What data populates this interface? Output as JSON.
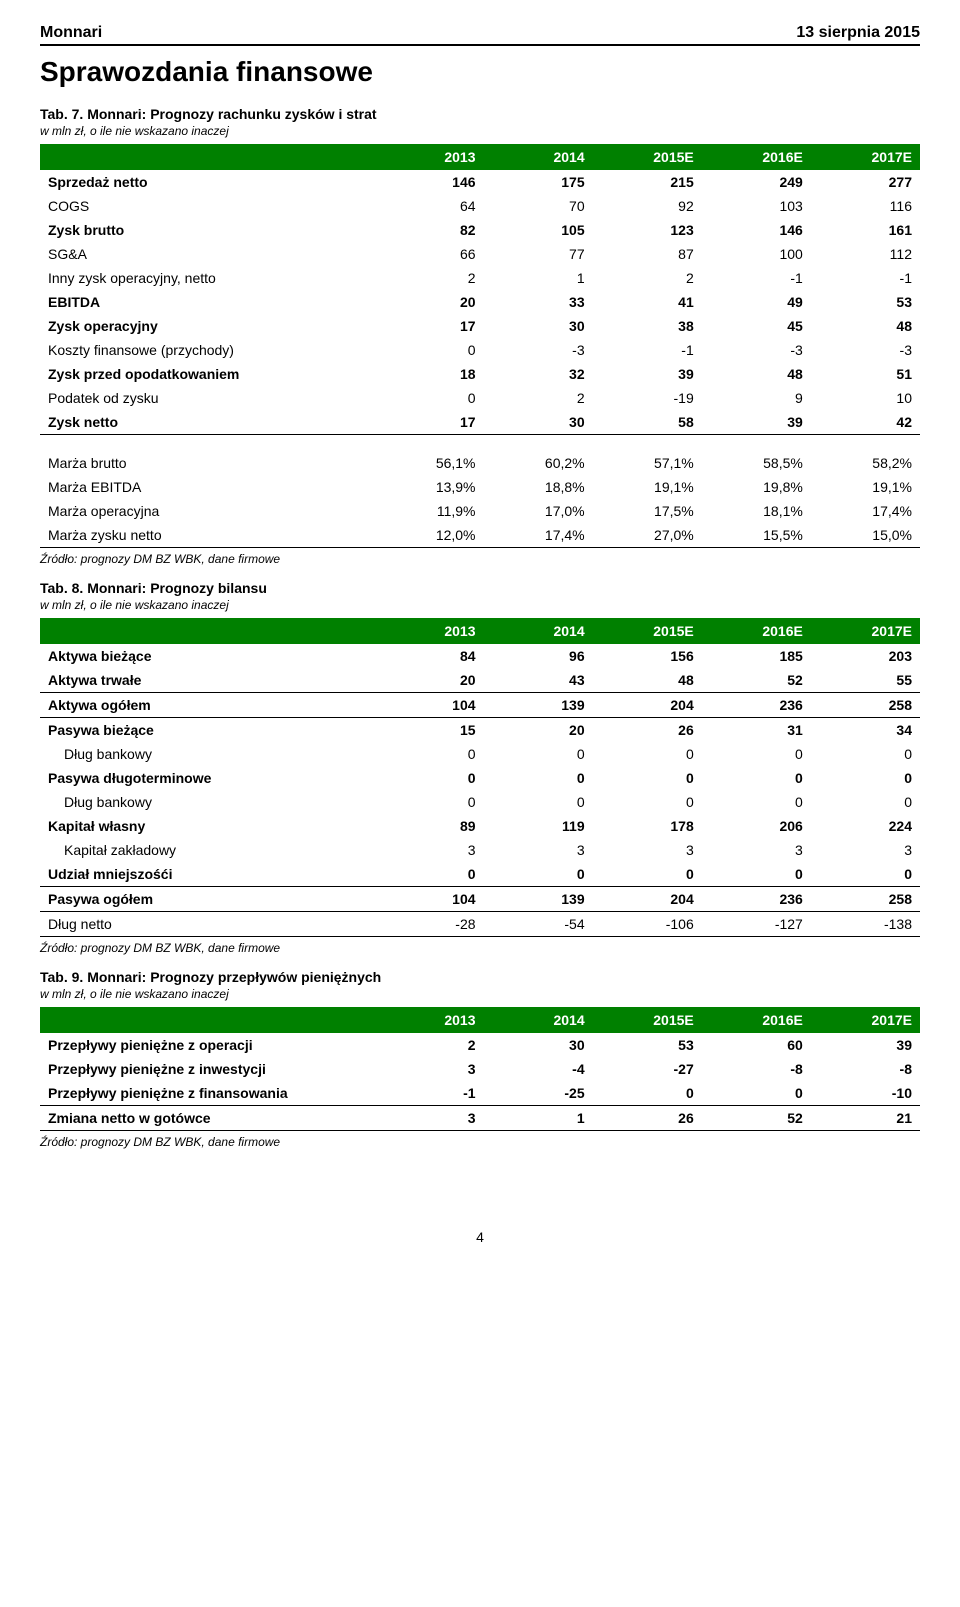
{
  "header": {
    "brand": "Monnari",
    "date": "13 sierpnia 2015"
  },
  "section_title": "Sprawozdania finansowe",
  "years": [
    "2013",
    "2014",
    "2015E",
    "2016E",
    "2017E"
  ],
  "source_note": "Źródło: prognozy DM BZ WBK, dane firmowe",
  "tab7": {
    "title": "Tab. 7. Monnari: Prognozy rachunku zysków i strat",
    "subtitle": "w mln zł, o ile nie wskazano inaczej",
    "rows": [
      {
        "label": "Sprzedaż netto",
        "v": [
          "146",
          "175",
          "215",
          "249",
          "277"
        ],
        "bold": true
      },
      {
        "label": "COGS",
        "v": [
          "64",
          "70",
          "92",
          "103",
          "116"
        ]
      },
      {
        "label": "Zysk brutto",
        "v": [
          "82",
          "105",
          "123",
          "146",
          "161"
        ],
        "bold": true
      },
      {
        "label": "SG&A",
        "v": [
          "66",
          "77",
          "87",
          "100",
          "112"
        ]
      },
      {
        "label": "Inny zysk operacyjny, netto",
        "v": [
          "2",
          "1",
          "2",
          "-1",
          "-1"
        ]
      },
      {
        "label": "EBITDA",
        "v": [
          "20",
          "33",
          "41",
          "49",
          "53"
        ],
        "bold": true
      },
      {
        "label": "Zysk operacyjny",
        "v": [
          "17",
          "30",
          "38",
          "45",
          "48"
        ],
        "bold": true
      },
      {
        "label": "Koszty finansowe (przychody)",
        "v": [
          "0",
          "-3",
          "-1",
          "-3",
          "-3"
        ]
      },
      {
        "label": "Zysk przed opodatkowaniem",
        "v": [
          "18",
          "32",
          "39",
          "48",
          "51"
        ],
        "bold": true
      },
      {
        "label": "Podatek od zysku",
        "v": [
          "0",
          "2",
          "-19",
          "9",
          "10"
        ]
      },
      {
        "label": "Zysk netto",
        "v": [
          "17",
          "30",
          "58",
          "39",
          "42"
        ],
        "bold": true,
        "under": true
      }
    ],
    "margin_rows": [
      {
        "label": "Marża brutto",
        "v": [
          "56,1%",
          "60,2%",
          "57,1%",
          "58,5%",
          "58,2%"
        ]
      },
      {
        "label": "Marża EBITDA",
        "v": [
          "13,9%",
          "18,8%",
          "19,1%",
          "19,8%",
          "19,1%"
        ]
      },
      {
        "label": "Marża operacyjna",
        "v": [
          "11,9%",
          "17,0%",
          "17,5%",
          "18,1%",
          "17,4%"
        ]
      },
      {
        "label": "Marża zysku netto",
        "v": [
          "12,0%",
          "17,4%",
          "27,0%",
          "15,5%",
          "15,0%"
        ],
        "under": true
      }
    ]
  },
  "tab8": {
    "title": "Tab. 8. Monnari: Prognozy bilansu",
    "subtitle": "w mln zł, o ile nie wskazano inaczej",
    "rows": [
      {
        "label": "Aktywa bieżące",
        "v": [
          "84",
          "96",
          "156",
          "185",
          "203"
        ],
        "bold": true
      },
      {
        "label": "Aktywa trwałe",
        "v": [
          "20",
          "43",
          "48",
          "52",
          "55"
        ],
        "bold": true,
        "under": true
      },
      {
        "label": "Aktywa ogółem",
        "v": [
          "104",
          "139",
          "204",
          "236",
          "258"
        ],
        "bold": true,
        "under": true
      },
      {
        "label": "Pasywa bieżące",
        "v": [
          "15",
          "20",
          "26",
          "31",
          "34"
        ],
        "bold": true
      },
      {
        "label": "Dług bankowy",
        "v": [
          "0",
          "0",
          "0",
          "0",
          "0"
        ],
        "indent": true
      },
      {
        "label": "Pasywa długoterminowe",
        "v": [
          "0",
          "0",
          "0",
          "0",
          "0"
        ],
        "bold": true
      },
      {
        "label": "Dług bankowy",
        "v": [
          "0",
          "0",
          "0",
          "0",
          "0"
        ],
        "indent": true
      },
      {
        "label": "Kapitał własny",
        "v": [
          "89",
          "119",
          "178",
          "206",
          "224"
        ],
        "bold": true
      },
      {
        "label": "Kapitał zakładowy",
        "v": [
          "3",
          "3",
          "3",
          "3",
          "3"
        ],
        "indent": true
      },
      {
        "label": "Udział mniejszośći",
        "v": [
          "0",
          "0",
          "0",
          "0",
          "0"
        ],
        "bold": true,
        "under": true
      },
      {
        "label": "Pasywa ogółem",
        "v": [
          "104",
          "139",
          "204",
          "236",
          "258"
        ],
        "bold": true,
        "under": true
      },
      {
        "label": "Dług netto",
        "v": [
          "-28",
          "-54",
          "-106",
          "-127",
          "-138"
        ],
        "under": true
      }
    ]
  },
  "tab9": {
    "title": "Tab. 9. Monnari: Prognozy przepływów pieniężnych",
    "subtitle": "w mln zł, o ile nie wskazano inaczej",
    "rows": [
      {
        "label": "Przepływy pieniężne z operacji",
        "v": [
          "2",
          "30",
          "53",
          "60",
          "39"
        ],
        "bold": true
      },
      {
        "label": "Przepływy pieniężne z inwestycji",
        "v": [
          "3",
          "-4",
          "-27",
          "-8",
          "-8"
        ],
        "bold": true
      },
      {
        "label": "Przepływy pieniężne z finansowania",
        "v": [
          "-1",
          "-25",
          "0",
          "0",
          "-10"
        ],
        "bold": true,
        "under": true
      },
      {
        "label": "Zmiana netto w gotówce",
        "v": [
          "3",
          "1",
          "26",
          "52",
          "21"
        ],
        "bold": true,
        "under": true
      }
    ]
  },
  "page_number": "4",
  "style": {
    "header_bg": "#008000",
    "header_fg": "#ffffff",
    "body_bg": "#ffffff",
    "text_color": "#000000",
    "brand_fontsize": 16,
    "section_title_fontsize": 28,
    "tab_title_fontsize": 14,
    "tab_subtitle_fontsize": 12,
    "table_fontsize": 14,
    "column_widths_pct": [
      38,
      12.4,
      12.4,
      12.4,
      12.4,
      12.4
    ]
  }
}
